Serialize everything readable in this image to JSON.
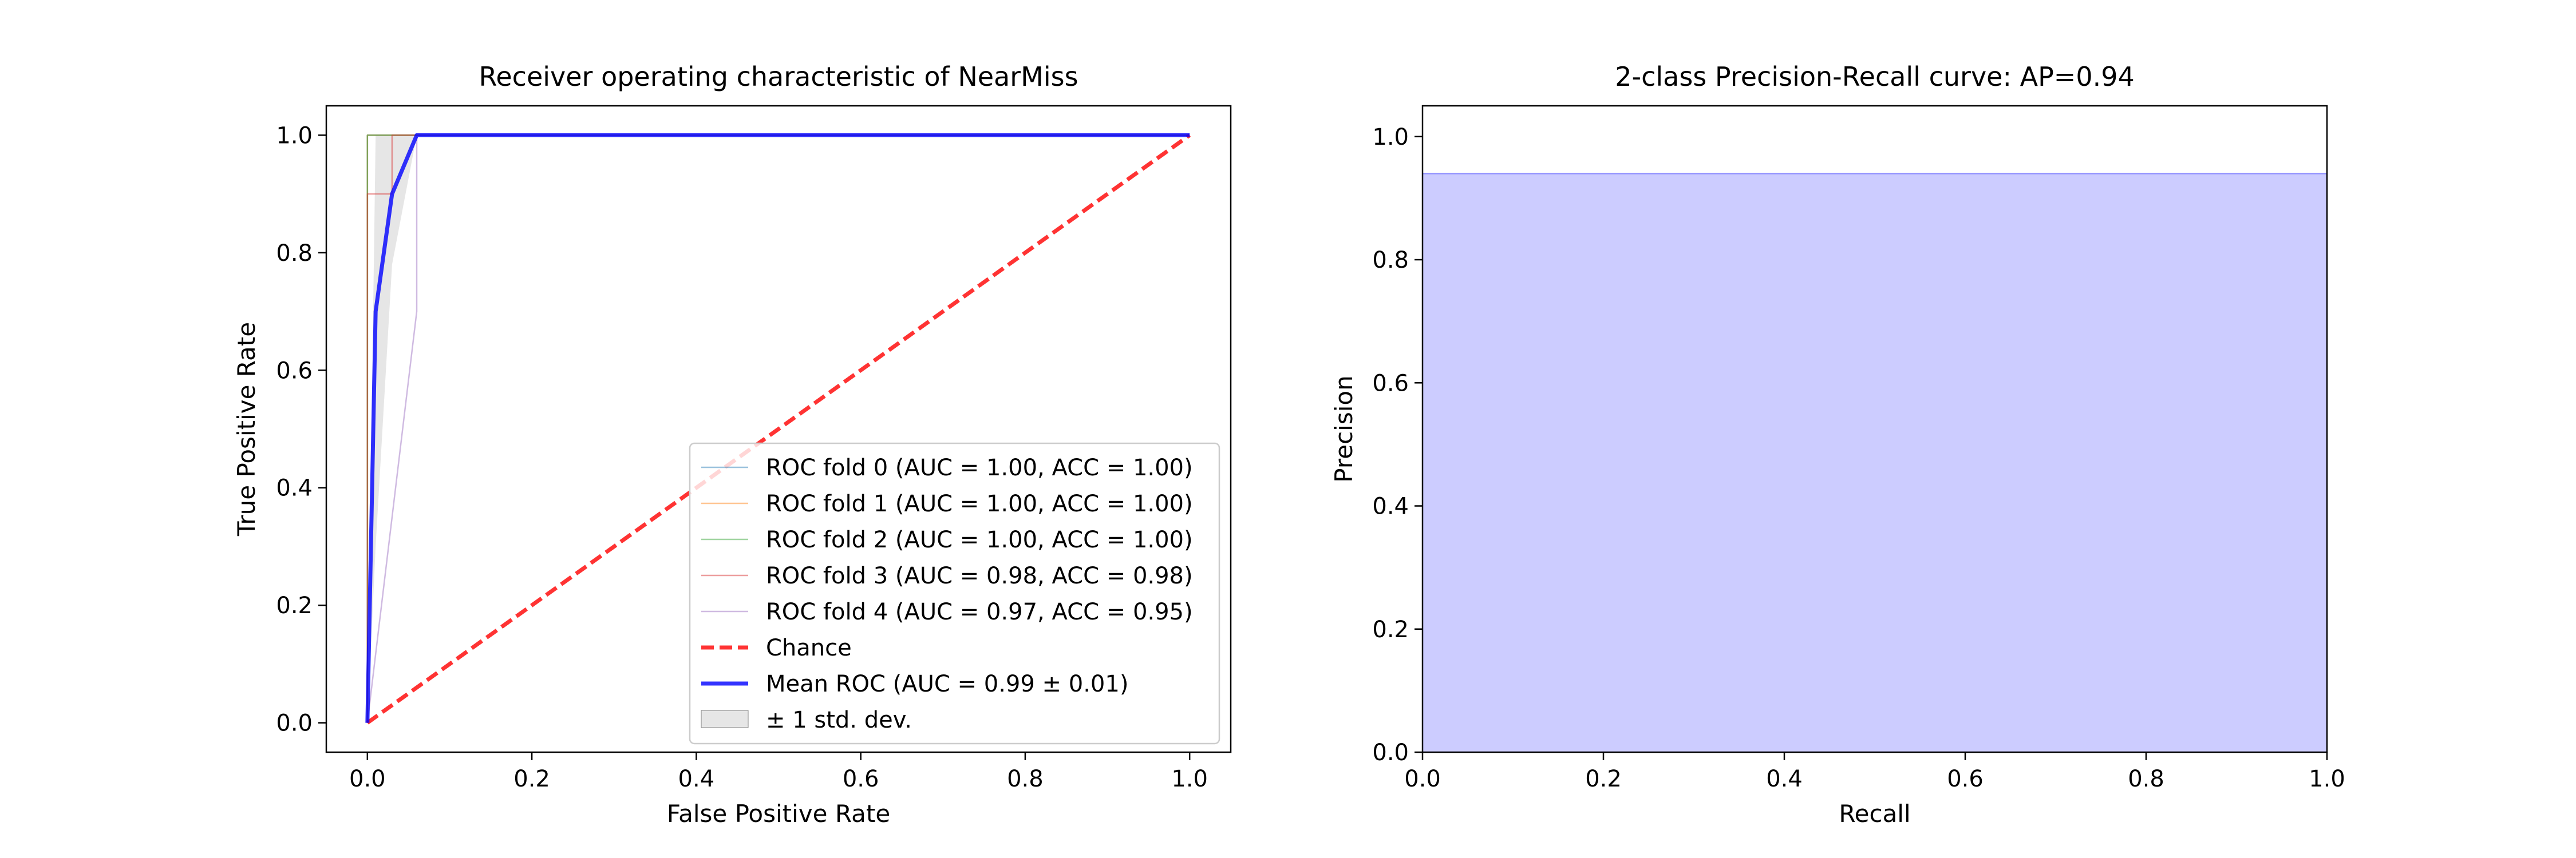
{
  "chart_data": [
    {
      "type": "line",
      "title": "Receiver operating characteristic of NearMiss",
      "xlabel": "False Positive Rate",
      "ylabel": "True Positive Rate",
      "xlim": [
        -0.05,
        1.05
      ],
      "ylim": [
        -0.05,
        1.05
      ],
      "x_ticks": [
        "0.0",
        "0.2",
        "0.4",
        "0.6",
        "0.8",
        "1.0"
      ],
      "y_ticks": [
        "0.0",
        "0.2",
        "0.4",
        "0.6",
        "0.8",
        "1.0"
      ],
      "grid": false,
      "legend_position": "lower-right",
      "series": [
        {
          "name": "ROC fold 0 (AUC = 1.00, ACC = 1.00)",
          "color": "#1f77b4",
          "style": "thin",
          "x": [
            0.0,
            0.0,
            1.0
          ],
          "y": [
            0.0,
            1.0,
            1.0
          ]
        },
        {
          "name": "ROC fold 1 (AUC = 1.00, ACC = 1.00)",
          "color": "#ff7f0e",
          "style": "thin",
          "x": [
            0.0,
            0.0,
            0.06,
            1.0
          ],
          "y": [
            0.0,
            1.0,
            1.0,
            1.0
          ]
        },
        {
          "name": "ROC fold 2 (AUC = 1.00, ACC = 1.00)",
          "color": "#2ca02c",
          "style": "thin",
          "x": [
            0.0,
            0.0,
            1.0
          ],
          "y": [
            0.0,
            1.0,
            1.0
          ]
        },
        {
          "name": "ROC fold 3 (AUC = 0.98, ACC = 0.98)",
          "color": "#d62728",
          "style": "thin",
          "x": [
            0.0,
            0.0,
            0.03,
            0.03,
            1.0
          ],
          "y": [
            0.0,
            0.9,
            0.9,
            1.0,
            1.0
          ]
        },
        {
          "name": "ROC fold 4 (AUC = 0.97, ACC = 0.95)",
          "color": "#9467bd",
          "style": "thin",
          "x": [
            0.0,
            0.06,
            0.06,
            1.0
          ],
          "y": [
            0.0,
            0.7,
            1.0,
            1.0
          ]
        },
        {
          "name": "Chance",
          "color": "#ff0000",
          "style": "dashed",
          "x": [
            0.0,
            1.0
          ],
          "y": [
            0.0,
            1.0
          ]
        },
        {
          "name": "Mean ROC (AUC = 0.99 ± 0.01)",
          "color": "#0000ff",
          "style": "thick",
          "x": [
            0.0,
            0.01,
            0.03,
            0.06,
            1.0
          ],
          "y": [
            0.0,
            0.7,
            0.9,
            1.0,
            1.0
          ]
        }
      ],
      "band": {
        "name": "± 1 std. dev.",
        "color": "#808080",
        "x": [
          0.0,
          0.01,
          0.03,
          0.06,
          1.0
        ],
        "lower": [
          0.0,
          0.3,
          0.78,
          1.0,
          1.0
        ],
        "upper": [
          0.0,
          1.0,
          1.0,
          1.0,
          1.0
        ]
      }
    },
    {
      "type": "area",
      "title": "2-class Precision-Recall curve: AP=0.94",
      "xlabel": "Recall",
      "ylabel": "Precision",
      "xlim": [
        0.0,
        1.0
      ],
      "ylim": [
        0.0,
        1.05
      ],
      "x_ticks": [
        "0.0",
        "0.2",
        "0.4",
        "0.6",
        "0.8",
        "1.0"
      ],
      "y_ticks": [
        "0.0",
        "0.2",
        "0.4",
        "0.6",
        "0.8",
        "1.0"
      ],
      "grid": false,
      "series": [
        {
          "name": "",
          "color": "#0000ff",
          "x": [
            0.0,
            1.0
          ],
          "y": [
            0.94,
            0.94
          ]
        }
      ],
      "fill_color": "#ccccff"
    }
  ]
}
